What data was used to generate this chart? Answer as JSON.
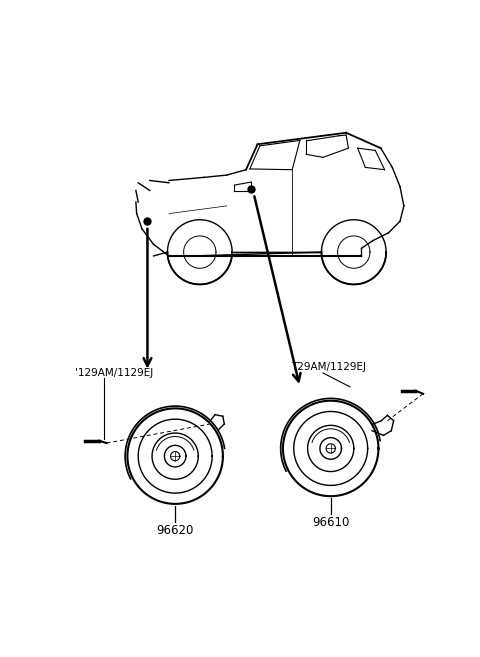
{
  "bg_color": "#ffffff",
  "line_color": "#000000",
  "fig_width": 4.8,
  "fig_height": 6.57,
  "dpi": 100,
  "label_left_part": "'129AM/1129EJ",
  "label_right_part": "T29AM/1129EJ",
  "part_num_left": "96620",
  "part_num_right": "96610"
}
